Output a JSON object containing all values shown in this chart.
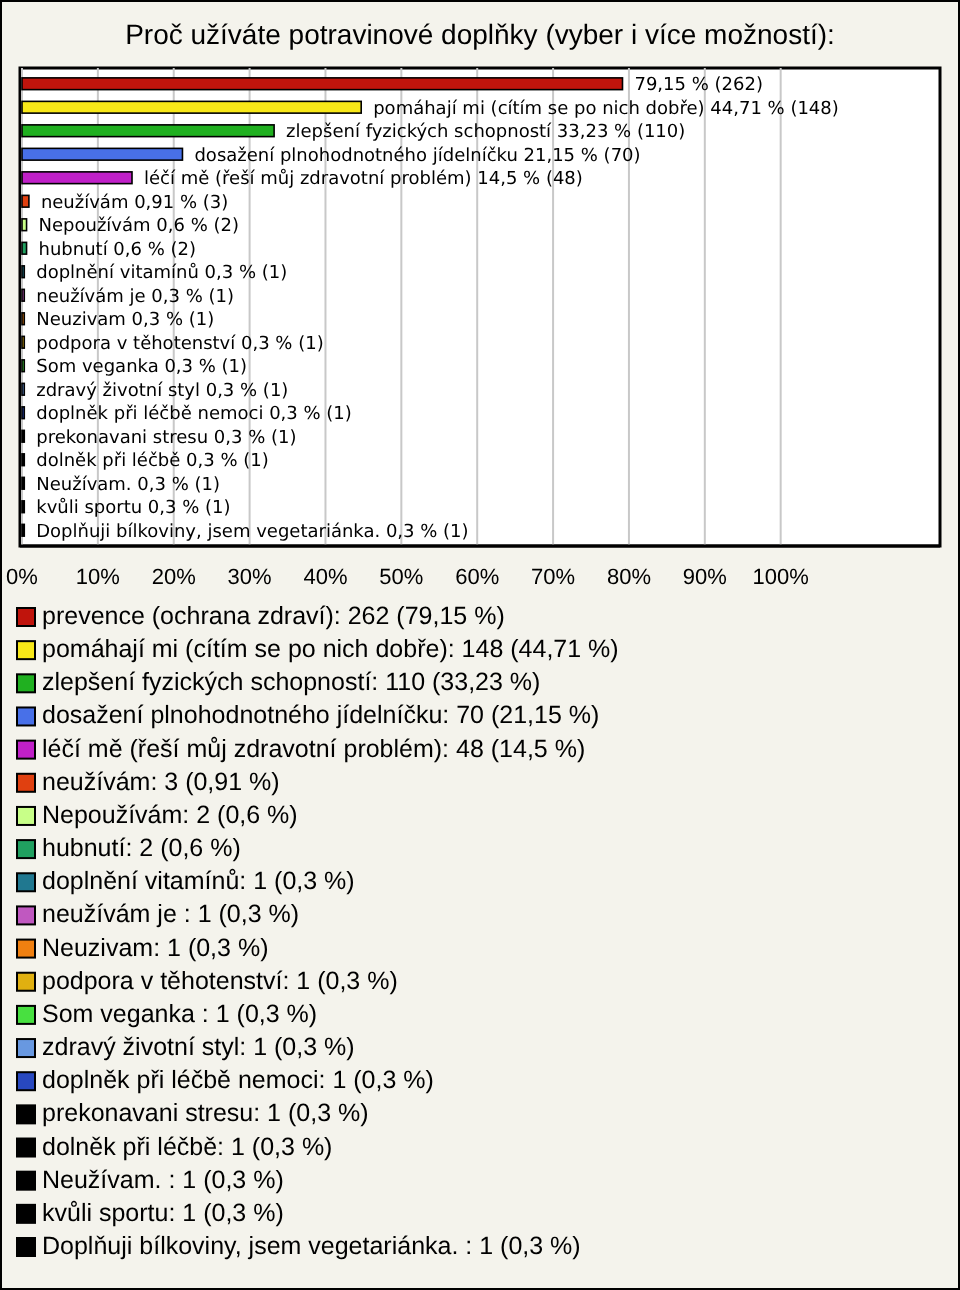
{
  "chart_data": {
    "type": "bar",
    "orientation": "horizontal",
    "stacked": true,
    "title": "Proč užíváte potravinové doplňky (vyber i více možností):",
    "categories": [
      null,
      null,
      null,
      null,
      null,
      null,
      null,
      null,
      null,
      null,
      null,
      null,
      null,
      null,
      null,
      null,
      null,
      null,
      null,
      null
    ],
    "series": [
      {
        "name": "prevence (ochrana zdraví): 262 (79,15 %)",
        "color": "#c0140c",
        "values": [
          79.15,
          null,
          null,
          null,
          null,
          null,
          null,
          null,
          null,
          null,
          null,
          null,
          null,
          null,
          null,
          null,
          null,
          null,
          null,
          null
        ],
        "value_labels": [
          "79,15 % (262)",
          null,
          null,
          null,
          null,
          null,
          null,
          null,
          null,
          null,
          null,
          null,
          null,
          null,
          null,
          null,
          null,
          null,
          null,
          null
        ]
      },
      {
        "name": "pomáhají mi (cítím se po nich dobře): 148 (44,71 %)",
        "color": "#f8e818",
        "values": [
          null,
          44.71,
          null,
          null,
          null,
          null,
          null,
          null,
          null,
          null,
          null,
          null,
          null,
          null,
          null,
          null,
          null,
          null,
          null,
          null
        ],
        "value_labels": [
          null,
          "pomáhají mi (cítím se po nich dobře) 44,71 % (148)",
          null,
          null,
          null,
          null,
          null,
          null,
          null,
          null,
          null,
          null,
          null,
          null,
          null,
          null,
          null,
          null,
          null,
          null
        ]
      },
      {
        "name": "zlepšení fyzických schopností: 110 (33,23 %)",
        "color": "#20b020",
        "values": [
          null,
          null,
          33.23,
          null,
          null,
          null,
          null,
          null,
          null,
          null,
          null,
          null,
          null,
          null,
          null,
          null,
          null,
          null,
          null,
          null
        ],
        "value_labels": [
          null,
          null,
          "zlepšení fyzických schopností 33,23 % (110)",
          null,
          null,
          null,
          null,
          null,
          null,
          null,
          null,
          null,
          null,
          null,
          null,
          null,
          null,
          null,
          null,
          null
        ]
      },
      {
        "name": "dosažení plnohodnotného jídelníčku: 70 (21,15 %)",
        "color": "#4870e8",
        "values": [
          null,
          null,
          null,
          21.15,
          null,
          null,
          null,
          null,
          null,
          null,
          null,
          null,
          null,
          null,
          null,
          null,
          null,
          null,
          null,
          null
        ],
        "value_labels": [
          null,
          null,
          null,
          "dosažení plnohodnotného jídelníčku 21,15 % (70)",
          null,
          null,
          null,
          null,
          null,
          null,
          null,
          null,
          null,
          null,
          null,
          null,
          null,
          null,
          null,
          null
        ]
      },
      {
        "name": "léčí mě (řeší můj zdravotní problém): 48 (14,5 %)",
        "color": "#c020c8",
        "values": [
          null,
          null,
          null,
          null,
          14.5,
          null,
          null,
          null,
          null,
          null,
          null,
          null,
          null,
          null,
          null,
          null,
          null,
          null,
          null,
          null
        ],
        "value_labels": [
          null,
          null,
          null,
          null,
          "léčí mě (řeší můj zdravotní problém) 14,5 % (48)",
          null,
          null,
          null,
          null,
          null,
          null,
          null,
          null,
          null,
          null,
          null,
          null,
          null,
          null,
          null
        ]
      },
      {
        "name": "neužívám: 3 (0,91 %)",
        "color": "#e04010",
        "values": [
          null,
          null,
          null,
          null,
          null,
          0.91,
          null,
          null,
          null,
          null,
          null,
          null,
          null,
          null,
          null,
          null,
          null,
          null,
          null,
          null
        ],
        "value_labels": [
          null,
          null,
          null,
          null,
          null,
          "neužívám 0,91 % (3)",
          null,
          null,
          null,
          null,
          null,
          null,
          null,
          null,
          null,
          null,
          null,
          null,
          null,
          null
        ]
      },
      {
        "name": "Nepoužívám: 2 (0,6 %)",
        "color": "#c8ff88",
        "values": [
          null,
          null,
          null,
          null,
          null,
          null,
          0.6,
          null,
          null,
          null,
          null,
          null,
          null,
          null,
          null,
          null,
          null,
          null,
          null,
          null
        ],
        "value_labels": [
          null,
          null,
          null,
          null,
          null,
          null,
          "Nepoužívám 0,6 % (2)",
          null,
          null,
          null,
          null,
          null,
          null,
          null,
          null,
          null,
          null,
          null,
          null,
          null
        ]
      },
      {
        "name": "hubnutí: 2 (0,6 %)",
        "color": "#20a060",
        "values": [
          null,
          null,
          null,
          null,
          null,
          null,
          null,
          0.6,
          null,
          null,
          null,
          null,
          null,
          null,
          null,
          null,
          null,
          null,
          null,
          null
        ],
        "value_labels": [
          null,
          null,
          null,
          null,
          null,
          null,
          null,
          "hubnutí 0,6 % (2)",
          null,
          null,
          null,
          null,
          null,
          null,
          null,
          null,
          null,
          null,
          null,
          null
        ]
      },
      {
        "name": "doplnění vitamínů: 1 (0,3 %)",
        "color": "#207890",
        "values": [
          null,
          null,
          null,
          null,
          null,
          null,
          null,
          null,
          0.3,
          null,
          null,
          null,
          null,
          null,
          null,
          null,
          null,
          null,
          null,
          null
        ],
        "value_labels": [
          null,
          null,
          null,
          null,
          null,
          null,
          null,
          null,
          "doplnění vitamínů 0,3 % (1)",
          null,
          null,
          null,
          null,
          null,
          null,
          null,
          null,
          null,
          null,
          null
        ]
      },
      {
        "name": "neužívám je : 1 (0,3 %)",
        "color": "#c058c0",
        "values": [
          null,
          null,
          null,
          null,
          null,
          null,
          null,
          null,
          null,
          0.3,
          null,
          null,
          null,
          null,
          null,
          null,
          null,
          null,
          null,
          null
        ],
        "value_labels": [
          null,
          null,
          null,
          null,
          null,
          null,
          null,
          null,
          null,
          "neužívám je  0,3 % (1)",
          null,
          null,
          null,
          null,
          null,
          null,
          null,
          null,
          null,
          null
        ]
      },
      {
        "name": "Neuzivam: 1 (0,3 %)",
        "color": "#f08010",
        "values": [
          null,
          null,
          null,
          null,
          null,
          null,
          null,
          null,
          null,
          null,
          0.3,
          null,
          null,
          null,
          null,
          null,
          null,
          null,
          null,
          null
        ],
        "value_labels": [
          null,
          null,
          null,
          null,
          null,
          null,
          null,
          null,
          null,
          null,
          "Neuzivam 0,3 % (1)",
          null,
          null,
          null,
          null,
          null,
          null,
          null,
          null,
          null
        ]
      },
      {
        "name": "podpora v těhotenství: 1 (0,3 %)",
        "color": "#e0b010",
        "values": [
          null,
          null,
          null,
          null,
          null,
          null,
          null,
          null,
          null,
          null,
          null,
          0.3,
          null,
          null,
          null,
          null,
          null,
          null,
          null,
          null
        ],
        "value_labels": [
          null,
          null,
          null,
          null,
          null,
          null,
          null,
          null,
          null,
          null,
          null,
          "podpora v těhotenství 0,3 % (1)",
          null,
          null,
          null,
          null,
          null,
          null,
          null,
          null
        ]
      },
      {
        "name": "Som veganka : 1 (0,3 %)",
        "color": "#48e040",
        "values": [
          null,
          null,
          null,
          null,
          null,
          null,
          null,
          null,
          null,
          null,
          null,
          null,
          0.3,
          null,
          null,
          null,
          null,
          null,
          null,
          null
        ],
        "value_labels": [
          null,
          null,
          null,
          null,
          null,
          null,
          null,
          null,
          null,
          null,
          null,
          null,
          "Som veganka  0,3 % (1)",
          null,
          null,
          null,
          null,
          null,
          null,
          null
        ]
      },
      {
        "name": "zdravý životní styl: 1 (0,3 %)",
        "color": "#6898e0",
        "values": [
          null,
          null,
          null,
          null,
          null,
          null,
          null,
          null,
          null,
          null,
          null,
          null,
          null,
          0.3,
          null,
          null,
          null,
          null,
          null,
          null
        ],
        "value_labels": [
          null,
          null,
          null,
          null,
          null,
          null,
          null,
          null,
          null,
          null,
          null,
          null,
          null,
          "zdravý životní styl 0,3 % (1)",
          null,
          null,
          null,
          null,
          null,
          null
        ]
      },
      {
        "name": "doplněk při léčbě nemoci: 1 (0,3 %)",
        "color": "#2848c0",
        "values": [
          null,
          null,
          null,
          null,
          null,
          null,
          null,
          null,
          null,
          null,
          null,
          null,
          null,
          null,
          0.3,
          null,
          null,
          null,
          null,
          null
        ],
        "value_labels": [
          null,
          null,
          null,
          null,
          null,
          null,
          null,
          null,
          null,
          null,
          null,
          null,
          null,
          null,
          "doplněk při léčbě nemoci 0,3 % (1)",
          null,
          null,
          null,
          null,
          null
        ]
      },
      {
        "name": "prekonavani stresu: 1 (0,3 %)",
        "color": "#000000",
        "values": [
          null,
          null,
          null,
          null,
          null,
          null,
          null,
          null,
          null,
          null,
          null,
          null,
          null,
          null,
          null,
          0.3,
          null,
          null,
          null,
          null
        ],
        "value_labels": [
          null,
          null,
          null,
          null,
          null,
          null,
          null,
          null,
          null,
          null,
          null,
          null,
          null,
          null,
          null,
          "prekonavani stresu 0,3 % (1)",
          null,
          null,
          null,
          null
        ]
      },
      {
        "name": "dolněk při léčbě: 1 (0,3 %)",
        "color": "#000000",
        "values": [
          null,
          null,
          null,
          null,
          null,
          null,
          null,
          null,
          null,
          null,
          null,
          null,
          null,
          null,
          null,
          null,
          0.3,
          null,
          null,
          null
        ],
        "value_labels": [
          null,
          null,
          null,
          null,
          null,
          null,
          null,
          null,
          null,
          null,
          null,
          null,
          null,
          null,
          null,
          null,
          "dolněk při léčbě 0,3 % (1)",
          null,
          null,
          null
        ]
      },
      {
        "name": "Neužívam. : 1 (0,3 %)",
        "color": "#000000",
        "values": [
          null,
          null,
          null,
          null,
          null,
          null,
          null,
          null,
          null,
          null,
          null,
          null,
          null,
          null,
          null,
          null,
          null,
          0.3,
          null,
          null
        ],
        "value_labels": [
          null,
          null,
          null,
          null,
          null,
          null,
          null,
          null,
          null,
          null,
          null,
          null,
          null,
          null,
          null,
          null,
          null,
          "Neužívam.  0,3 % (1)",
          null,
          null
        ]
      },
      {
        "name": "kvůli sportu: 1 (0,3 %)",
        "color": "#000000",
        "values": [
          null,
          null,
          null,
          null,
          null,
          null,
          null,
          null,
          null,
          null,
          null,
          null,
          null,
          null,
          null,
          null,
          null,
          null,
          0.3,
          null
        ],
        "value_labels": [
          null,
          null,
          null,
          null,
          null,
          null,
          null,
          null,
          null,
          null,
          null,
          null,
          null,
          null,
          null,
          null,
          null,
          null,
          "kvůli sportu 0,3 % (1)",
          null
        ]
      },
      {
        "name": "Doplňuji bílkoviny, jsem vegetariánka. : 1 (0,3 %)",
        "color": "#000000",
        "values": [
          null,
          null,
          null,
          null,
          null,
          null,
          null,
          null,
          null,
          null,
          null,
          null,
          null,
          null,
          null,
          null,
          null,
          null,
          null,
          0.3
        ],
        "value_labels": [
          null,
          null,
          null,
          null,
          null,
          null,
          null,
          null,
          null,
          null,
          null,
          null,
          null,
          null,
          null,
          null,
          null,
          null,
          null,
          "Doplňuji bílkoviny, jsem vegetariánka.  0,3 % (1)"
        ]
      }
    ],
    "xlim": [
      0,
      121
    ],
    "xticks": [
      {
        "value": 0,
        "label": "0%"
      },
      {
        "value": 10,
        "label": "10%"
      },
      {
        "value": 20,
        "label": "20%"
      },
      {
        "value": 30,
        "label": "30%"
      },
      {
        "value": 40,
        "label": "40%"
      },
      {
        "value": 50,
        "label": "50%"
      },
      {
        "value": 60,
        "label": "60%"
      },
      {
        "value": 70,
        "label": "70%"
      },
      {
        "value": 80,
        "label": "80%"
      },
      {
        "value": 90,
        "label": "90%"
      },
      {
        "value": 100,
        "label": "100%"
      }
    ],
    "grid": "x",
    "legend": "bottom",
    "tick_labels": "x"
  }
}
